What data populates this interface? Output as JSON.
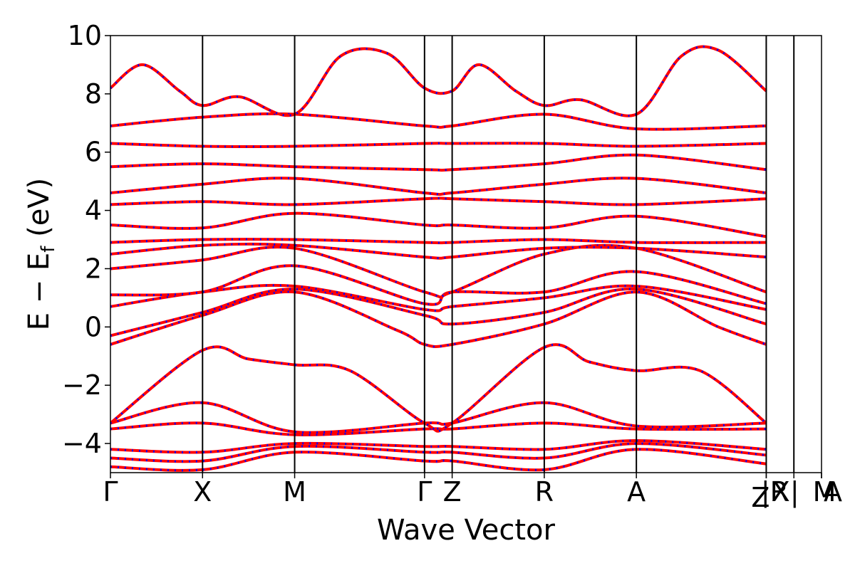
{
  "chart_data": {
    "type": "line",
    "title": "",
    "xlabel": "Wave Vector",
    "ylabel_main": "E − E",
    "ylabel_sub": "f",
    "ylabel_unit": " (eV)",
    "ylim": [
      -5,
      10
    ],
    "yticks": [
      10,
      8,
      6,
      4,
      2,
      0,
      -2,
      -4
    ],
    "ytick_labels": [
      "10",
      "8",
      "6",
      "4",
      "2",
      "0",
      "−2",
      "−4"
    ],
    "kpath": [
      {
        "label": "Γ",
        "x": 0.0
      },
      {
        "label": "X",
        "x": 1.0
      },
      {
        "label": "M",
        "x": 2.0
      },
      {
        "label": "Γ",
        "x": 3.41
      },
      {
        "label": "Z",
        "x": 3.71
      },
      {
        "label": "R",
        "x": 4.71
      },
      {
        "label": "A",
        "x": 5.71
      },
      {
        "label": "Z",
        "x": 7.12
      },
      {
        "label": "|R",
        "x": 7.12
      },
      {
        "label": "X|",
        "x": 7.42
      },
      {
        "label": "M",
        "x": 7.72
      },
      {
        "label": "A",
        "x": 7.72
      }
    ],
    "xlim": [
      0,
      7.72
    ],
    "series_colors": {
      "primary": "#ff0000",
      "overlay": "#0000ff"
    },
    "bands": [
      {
        "name": "",
        "x": [
          0,
          1,
          2,
          3.41,
          3.71,
          4.71,
          5.71,
          7.12
        ],
        "y": [
          -4.8,
          -4.9,
          -4.3,
          -4.6,
          -4.6,
          -4.9,
          -4.2,
          -4.7
        ]
      },
      {
        "name": "",
        "x": [
          0,
          1,
          2,
          3.41,
          3.71,
          4.71,
          5.71,
          7.12
        ],
        "y": [
          -4.5,
          -4.6,
          -4.1,
          -4.3,
          -4.3,
          -4.5,
          -4.0,
          -4.4
        ]
      },
      {
        "name": "",
        "x": [
          0,
          1,
          2,
          3.41,
          3.71,
          4.71,
          5.71,
          7.12
        ],
        "y": [
          -4.2,
          -4.3,
          -4.0,
          -4.1,
          -4.1,
          -4.2,
          -3.9,
          -4.2
        ]
      },
      {
        "name": "",
        "x": [
          0,
          1,
          2,
          3.41,
          3.71,
          4.71,
          5.71,
          7.12
        ],
        "y": [
          -3.5,
          -3.3,
          -3.7,
          -3.5,
          -3.5,
          -3.3,
          -3.5,
          -3.5
        ]
      },
      {
        "name": "",
        "x": [
          0,
          1,
          2,
          3.41,
          3.71,
          4.71,
          5.71,
          7.12
        ],
        "y": [
          -3.3,
          -2.6,
          -3.6,
          -3.3,
          -3.3,
          -2.6,
          -3.4,
          -3.3
        ]
      },
      {
        "name": "",
        "x": [
          0,
          1,
          1.5,
          2,
          2.6,
          3.41,
          3.71,
          4.71,
          5.2,
          5.71,
          6.4,
          7.12
        ],
        "y": [
          -3.3,
          -0.8,
          -1.1,
          -1.3,
          -1.5,
          -3.3,
          -3.3,
          -0.7,
          -1.2,
          -1.5,
          -1.5,
          -3.3
        ]
      },
      {
        "name": "",
        "x": [
          0,
          1,
          2,
          3.1,
          3.41,
          3.71,
          4.71,
          5.71,
          6.6,
          7.12
        ],
        "y": [
          -0.6,
          0.4,
          1.2,
          -0.1,
          -0.6,
          -0.6,
          0.1,
          1.2,
          0.0,
          -0.6
        ]
      },
      {
        "name": "",
        "x": [
          0,
          1,
          2,
          3.41,
          3.71,
          4.71,
          5.71,
          7.12
        ],
        "y": [
          -0.3,
          0.5,
          1.3,
          0.4,
          0.1,
          0.5,
          1.3,
          0.1
        ]
      },
      {
        "name": "",
        "x": [
          0,
          1,
          2,
          3.41,
          3.71,
          4.71,
          5.71,
          7.12
        ],
        "y": [
          0.7,
          1.2,
          1.4,
          0.6,
          0.7,
          1.0,
          1.4,
          0.6
        ]
      },
      {
        "name": "",
        "x": [
          0,
          1,
          2,
          3.41,
          3.71,
          4.71,
          5.71,
          7.12
        ],
        "y": [
          1.1,
          1.2,
          2.1,
          0.8,
          1.2,
          1.2,
          1.9,
          0.8
        ]
      },
      {
        "name": "",
        "x": [
          0,
          1,
          2,
          3.41,
          3.71,
          4.71,
          5.71,
          7.12
        ],
        "y": [
          2.0,
          2.3,
          2.7,
          1.2,
          1.2,
          2.5,
          2.7,
          1.2
        ]
      },
      {
        "name": "",
        "x": [
          0,
          1,
          2,
          3.41,
          3.71,
          4.71,
          5.71,
          7.12
        ],
        "y": [
          2.5,
          2.8,
          2.8,
          2.4,
          2.4,
          2.7,
          2.7,
          2.4
        ]
      },
      {
        "name": "",
        "x": [
          0,
          1,
          2,
          3.41,
          3.71,
          4.71,
          5.71,
          7.12
        ],
        "y": [
          2.9,
          3.0,
          3.0,
          2.9,
          2.9,
          3.0,
          2.9,
          2.9
        ]
      },
      {
        "name": "",
        "x": [
          0,
          1,
          2,
          3.41,
          3.71,
          4.71,
          5.71,
          7.12
        ],
        "y": [
          3.5,
          3.4,
          3.9,
          3.5,
          3.5,
          3.4,
          3.8,
          3.1
        ]
      },
      {
        "name": "",
        "x": [
          0,
          1,
          2,
          3.41,
          3.71,
          4.71,
          5.71,
          7.12
        ],
        "y": [
          4.2,
          4.3,
          4.2,
          4.4,
          4.4,
          4.3,
          4.2,
          4.4
        ]
      },
      {
        "name": "",
        "x": [
          0,
          1,
          2,
          3.41,
          3.71,
          4.71,
          5.71,
          7.12
        ],
        "y": [
          4.6,
          4.9,
          5.1,
          4.6,
          4.6,
          4.9,
          5.1,
          4.6
        ]
      },
      {
        "name": "",
        "x": [
          0,
          1,
          2,
          3.41,
          3.71,
          4.71,
          5.71,
          7.12
        ],
        "y": [
          5.5,
          5.6,
          5.5,
          5.4,
          5.4,
          5.6,
          5.9,
          5.4
        ]
      },
      {
        "name": "",
        "x": [
          0,
          1,
          2,
          3.41,
          3.71,
          4.71,
          5.71,
          7.12
        ],
        "y": [
          6.3,
          6.2,
          6.2,
          6.3,
          6.3,
          6.3,
          6.2,
          6.3
        ]
      },
      {
        "name": "",
        "x": [
          0,
          1,
          2,
          3.41,
          3.71,
          4.71,
          5.71,
          7.12
        ],
        "y": [
          6.9,
          7.2,
          7.3,
          6.9,
          6.9,
          7.3,
          6.8,
          6.9
        ]
      },
      {
        "name": "",
        "x": [
          0,
          0.35,
          0.75,
          1,
          1.4,
          2,
          2.5,
          3.0,
          3.41,
          3.71,
          4.0,
          4.4,
          4.71,
          5.1,
          5.71,
          6.2,
          6.6,
          7.12
        ],
        "y": [
          8.2,
          9.0,
          8.1,
          7.6,
          7.9,
          7.3,
          9.3,
          9.4,
          8.2,
          8.1,
          9.0,
          8.1,
          7.6,
          7.8,
          7.3,
          9.3,
          9.5,
          8.1
        ]
      }
    ]
  }
}
